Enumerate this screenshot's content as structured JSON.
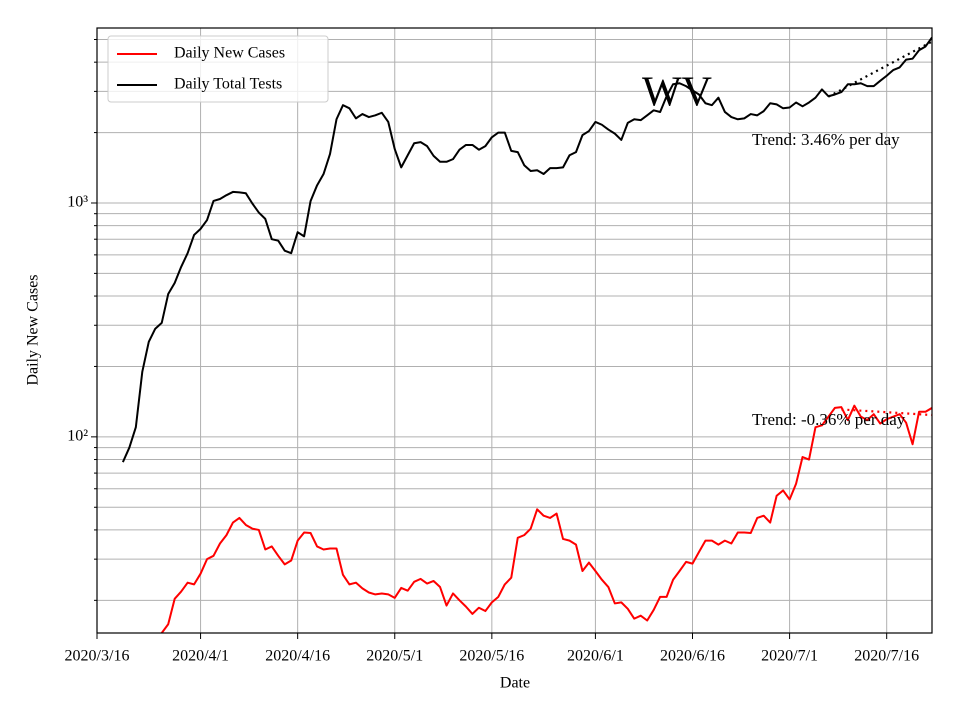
{
  "chart_data": {
    "type": "line",
    "x_label": "Date",
    "y_label": "Daily New Cases",
    "log_scale": true,
    "grid": true,
    "legend_position": "upper-left",
    "xlim": [
      "2020-03-16",
      "2020-07-23"
    ],
    "xticks": [
      {
        "value": "2020-03-16",
        "label": "2020/3/16"
      },
      {
        "value": "2020-04-01",
        "label": "2020/4/1"
      },
      {
        "value": "2020-04-16",
        "label": "2020/4/16"
      },
      {
        "value": "2020-05-01",
        "label": "2020/5/1"
      },
      {
        "value": "2020-05-16",
        "label": "2020/5/16"
      },
      {
        "value": "2020-06-01",
        "label": "2020/6/1"
      },
      {
        "value": "2020-06-16",
        "label": "2020/6/16"
      },
      {
        "value": "2020-07-01",
        "label": "2020/7/1"
      },
      {
        "value": "2020-07-16",
        "label": "2020/7/16"
      }
    ],
    "ylim": [
      14.5,
      5600
    ],
    "yticks": [
      {
        "value": 100,
        "label": "10²"
      },
      {
        "value": 1000,
        "label": "10³"
      }
    ],
    "yminorticks": [
      20,
      30,
      40,
      50,
      60,
      70,
      80,
      90,
      200,
      300,
      400,
      500,
      600,
      700,
      800,
      900,
      2000,
      3000,
      4000,
      5000
    ],
    "x": [
      "2020-03-20",
      "2020-03-21",
      "2020-03-22",
      "2020-03-23",
      "2020-03-24",
      "2020-03-25",
      "2020-03-26",
      "2020-03-27",
      "2020-03-28",
      "2020-03-29",
      "2020-03-30",
      "2020-03-31",
      "2020-04-01",
      "2020-04-02",
      "2020-04-03",
      "2020-04-04",
      "2020-04-05",
      "2020-04-06",
      "2020-04-07",
      "2020-04-08",
      "2020-04-09",
      "2020-04-10",
      "2020-04-11",
      "2020-04-12",
      "2020-04-13",
      "2020-04-14",
      "2020-04-15",
      "2020-04-16",
      "2020-04-17",
      "2020-04-18",
      "2020-04-19",
      "2020-04-20",
      "2020-04-21",
      "2020-04-22",
      "2020-04-23",
      "2020-04-24",
      "2020-04-25",
      "2020-04-26",
      "2020-04-27",
      "2020-04-28",
      "2020-04-29",
      "2020-04-30",
      "2020-05-01",
      "2020-05-02",
      "2020-05-03",
      "2020-05-04",
      "2020-05-05",
      "2020-05-06",
      "2020-05-07",
      "2020-05-08",
      "2020-05-09",
      "2020-05-10",
      "2020-05-11",
      "2020-05-12",
      "2020-05-13",
      "2020-05-14",
      "2020-05-15",
      "2020-05-16",
      "2020-05-17",
      "2020-05-18",
      "2020-05-19",
      "2020-05-20",
      "2020-05-21",
      "2020-05-22",
      "2020-05-23",
      "2020-05-24",
      "2020-05-25",
      "2020-05-26",
      "2020-05-27",
      "2020-05-28",
      "2020-05-29",
      "2020-05-30",
      "2020-05-31",
      "2020-06-01",
      "2020-06-02",
      "2020-06-03",
      "2020-06-04",
      "2020-06-05",
      "2020-06-06",
      "2020-06-07",
      "2020-06-08",
      "2020-06-09",
      "2020-06-10",
      "2020-06-11",
      "2020-06-12",
      "2020-06-13",
      "2020-06-14",
      "2020-06-15",
      "2020-06-16",
      "2020-06-17",
      "2020-06-18",
      "2020-06-19",
      "2020-06-20",
      "2020-06-21",
      "2020-06-22",
      "2020-06-23",
      "2020-06-24",
      "2020-06-25",
      "2020-06-26",
      "2020-06-27",
      "2020-06-28",
      "2020-06-29",
      "2020-06-30",
      "2020-07-01",
      "2020-07-02",
      "2020-07-03",
      "2020-07-04",
      "2020-07-05",
      "2020-07-06",
      "2020-07-07",
      "2020-07-08",
      "2020-07-09",
      "2020-07-10",
      "2020-07-11",
      "2020-07-12",
      "2020-07-13",
      "2020-07-14",
      "2020-07-15",
      "2020-07-16",
      "2020-07-17",
      "2020-07-18",
      "2020-07-19",
      "2020-07-20",
      "2020-07-21",
      "2020-07-22",
      "2020-07-23"
    ],
    "series": [
      {
        "name": "Daily New Cases",
        "color": "#ff0000",
        "values": [
          null,
          null,
          null,
          null,
          null,
          13,
          14.5,
          15.8,
          20.3,
          21.8,
          23.8,
          23.4,
          26,
          30,
          31,
          35,
          38,
          43,
          45,
          42,
          40.5,
          40,
          33,
          34,
          31,
          28.5,
          29.6,
          36,
          39,
          38.8,
          34,
          33,
          33.3,
          33.3,
          25.7,
          23.4,
          23.8,
          22.5,
          21.6,
          21.2,
          21.4,
          21.2,
          20.5,
          22.6,
          22,
          24,
          24.7,
          23.6,
          24.2,
          22.8,
          19,
          21.4,
          20,
          18.8,
          17.5,
          18.6,
          18,
          19.6,
          20.7,
          23.4,
          25,
          37,
          38,
          40.5,
          49,
          46,
          45,
          47,
          36.6,
          36,
          34.6,
          26.7,
          29,
          26.7,
          24.5,
          22.8,
          19.4,
          19.6,
          18.4,
          16.7,
          17.2,
          16.4,
          18.2,
          20.7,
          20.7,
          24.5,
          26.7,
          29.2,
          28.7,
          32.2,
          36,
          36,
          34.6,
          36,
          35,
          39,
          39,
          38.8,
          45,
          46,
          43,
          56,
          59,
          54,
          63,
          82,
          80,
          110,
          112,
          122,
          133,
          134,
          118,
          136,
          122,
          118,
          125,
          114,
          119,
          122,
          125,
          115,
          93,
          128,
          128,
          133
        ]
      },
      {
        "name": "Daily Total Tests",
        "color": "#000000",
        "values": [
          78,
          90,
          110,
          190,
          255,
          290,
          307,
          408,
          455,
          533,
          610,
          730,
          775,
          845,
          1020,
          1040,
          1080,
          1115,
          1110,
          1100,
          995,
          910,
          855,
          700,
          690,
          625,
          610,
          750,
          720,
          1020,
          1190,
          1330,
          1620,
          2280,
          2620,
          2540,
          2300,
          2400,
          2330,
          2370,
          2430,
          2220,
          1700,
          1420,
          1600,
          1800,
          1820,
          1750,
          1590,
          1500,
          1500,
          1540,
          1690,
          1770,
          1770,
          1690,
          1750,
          1910,
          2000,
          2000,
          1670,
          1650,
          1450,
          1370,
          1380,
          1330,
          1410,
          1410,
          1420,
          1600,
          1650,
          1950,
          2030,
          2220,
          2160,
          2060,
          1980,
          1860,
          2200,
          2280,
          2260,
          2370,
          2490,
          2450,
          2860,
          3220,
          3250,
          3160,
          3030,
          2910,
          2670,
          2620,
          2820,
          2450,
          2330,
          2280,
          2300,
          2400,
          2370,
          2470,
          2670,
          2640,
          2540,
          2560,
          2690,
          2590,
          2690,
          2820,
          3060,
          2860,
          2910,
          2980,
          3220,
          3220,
          3250,
          3160,
          3160,
          3330,
          3500,
          3700,
          3800,
          4100,
          4140,
          4500,
          4670,
          5100
        ]
      }
    ],
    "trend_lines": [
      {
        "color": "#000000",
        "x": [
          "2020-07-07",
          "2020-07-23"
        ],
        "values": [
          2850,
          4900
        ]
      },
      {
        "color": "#ff0000",
        "x": [
          "2020-07-09",
          "2020-07-23"
        ],
        "values": [
          131,
          124
        ]
      }
    ],
    "annotations": [
      {
        "text": "Trend: 3.46% per day"
      },
      {
        "text": "Trend: -0.36% per day"
      },
      {
        "text": "WV"
      }
    ]
  }
}
